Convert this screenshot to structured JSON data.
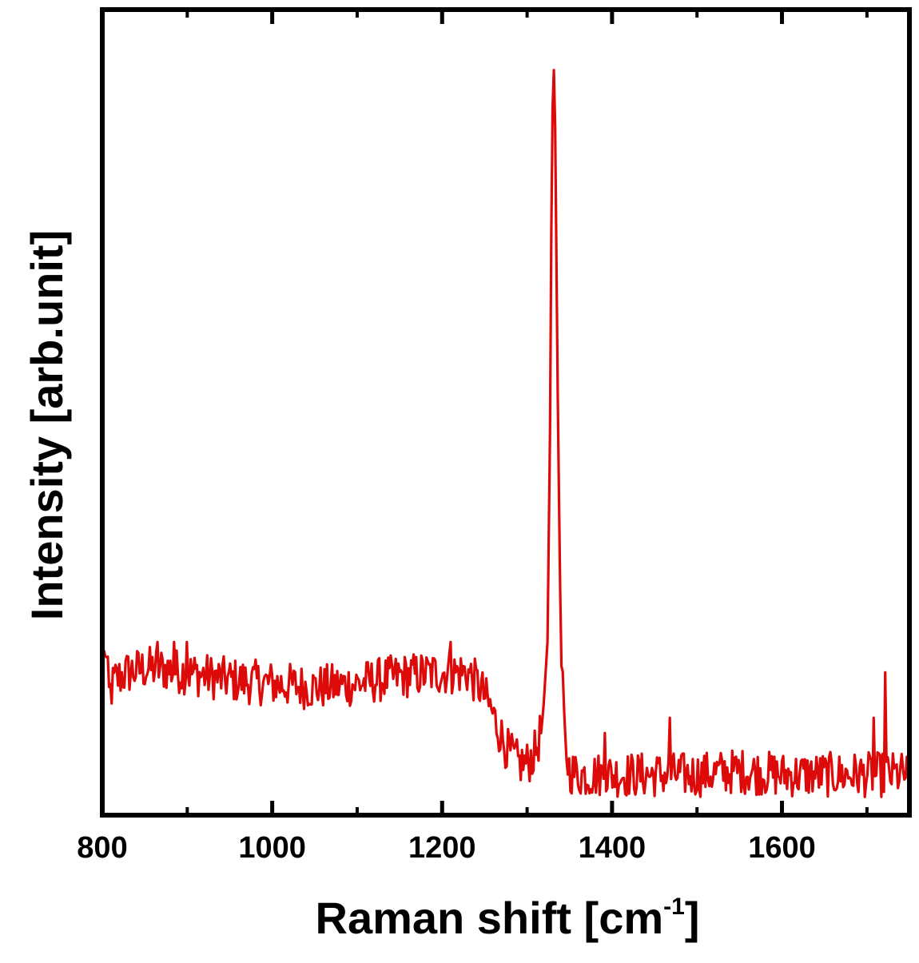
{
  "chart_data": {
    "type": "line",
    "title": "",
    "xlabel_main": "Raman shift [cm",
    "xlabel_sup": "-1",
    "xlabel_close": "]",
    "ylabel": "Intensity [arb.unit]",
    "xlim": [
      800,
      1750
    ],
    "ylim": [
      0,
      100
    ],
    "x_ticks": [
      800,
      1000,
      1200,
      1400,
      1600
    ],
    "x_tick_labels": [
      "800",
      "1000",
      "1200",
      "1400",
      "1600"
    ],
    "y_ticks_shown": false,
    "grid": false,
    "line_color": "#dd0a0a",
    "series": [
      {
        "values_description_free": true,
        "points": [
          [
            800,
            16
          ],
          [
            803,
            22
          ],
          [
            808,
            15
          ],
          [
            815,
            17
          ],
          [
            830,
            18
          ],
          [
            850,
            18.5
          ],
          [
            870,
            18.5
          ],
          [
            900,
            18
          ],
          [
            950,
            17
          ],
          [
            1000,
            16.5
          ],
          [
            1050,
            16
          ],
          [
            1100,
            16.5
          ],
          [
            1150,
            17.5
          ],
          [
            1200,
            18
          ],
          [
            1230,
            18
          ],
          [
            1245,
            16
          ],
          [
            1258,
            13
          ],
          [
            1268,
            10
          ],
          [
            1278,
            7.5
          ],
          [
            1290,
            6
          ],
          [
            1300,
            6
          ],
          [
            1310,
            7.5
          ],
          [
            1318,
            11
          ],
          [
            1324,
            22
          ],
          [
            1327,
            50
          ],
          [
            1329,
            85
          ],
          [
            1331,
            100
          ],
          [
            1333,
            90
          ],
          [
            1336,
            55
          ],
          [
            1340,
            20
          ],
          [
            1345,
            8
          ],
          [
            1350,
            5
          ],
          [
            1360,
            4.5
          ],
          [
            1400,
            4.5
          ],
          [
            1450,
            4.5
          ],
          [
            1500,
            4.5
          ],
          [
            1550,
            5
          ],
          [
            1600,
            4.5
          ],
          [
            1650,
            4.5
          ],
          [
            1700,
            4.5
          ],
          [
            1750,
            4.5
          ]
        ],
        "spikes": [
          [
            1722,
            18
          ],
          [
            1553,
            14
          ],
          [
            1708,
            12
          ],
          [
            1468,
            12
          ],
          [
            1392,
            10
          ],
          [
            1232,
            24
          ],
          [
            1160,
            21
          ],
          [
            1210,
            22
          ],
          [
            865,
            22
          ],
          [
            885,
            22
          ],
          [
            900,
            22
          ]
        ]
      }
    ]
  }
}
